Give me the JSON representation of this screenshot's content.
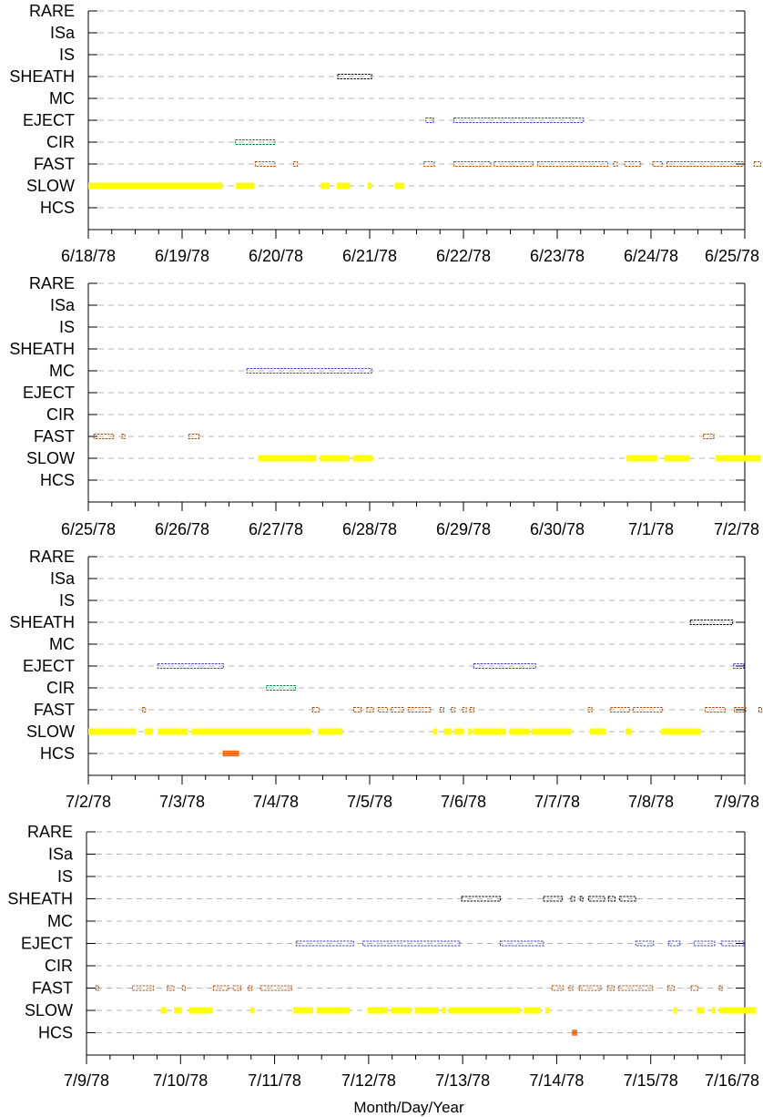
{
  "x_axis_title": "Month/Day/Year",
  "categories": [
    "RARE",
    "ISa",
    "IS",
    "SHEATH",
    "MC",
    "EJECT",
    "CIR",
    "FAST",
    "SLOW",
    "HCS"
  ],
  "colors": {
    "SHEATH": "#000000",
    "MC": "#4040c0",
    "EJECT": "#4040c0",
    "CIR": "#008040",
    "FAST": "#b05010",
    "SLOW": "#ffff00",
    "HCS": "#ff6000",
    "grid": "#b4b4b4",
    "axis": "#000000"
  },
  "chart_data": [
    {
      "type": "scatter",
      "panel": 1,
      "y_categories": [
        "RARE",
        "ISa",
        "IS",
        "SHEATH",
        "MC",
        "EJECT",
        "CIR",
        "FAST",
        "SLOW",
        "HCS"
      ],
      "x_range_days": [
        "6/18/78",
        "6/25/78"
      ],
      "tick_labels": [
        "6/18/78",
        "6/19/78",
        "6/20/78",
        "6/21/78",
        "6/22/78",
        "6/23/78",
        "6/24/78",
        "6/25/78"
      ],
      "grid": true,
      "intervals": [
        {
          "category": "SHEATH",
          "start": 2.66,
          "end": 3.02
        },
        {
          "category": "EJECT",
          "start": 3.6,
          "end": 3.68
        },
        {
          "category": "EJECT",
          "start": 3.9,
          "end": 5.28
        },
        {
          "category": "CIR",
          "start": 1.57,
          "end": 1.99
        },
        {
          "category": "FAST",
          "start": 1.78,
          "end": 1.99
        },
        {
          "category": "FAST",
          "start": 2.19,
          "end": 2.23
        },
        {
          "category": "FAST",
          "start": 3.58,
          "end": 3.69
        },
        {
          "category": "FAST",
          "start": 3.9,
          "end": 4.29
        },
        {
          "category": "FAST",
          "start": 4.33,
          "end": 4.74
        },
        {
          "category": "FAST",
          "start": 4.79,
          "end": 5.54
        },
        {
          "category": "FAST",
          "start": 5.6,
          "end": 5.64
        },
        {
          "category": "FAST",
          "start": 5.72,
          "end": 5.89
        },
        {
          "category": "FAST",
          "start": 6.02,
          "end": 6.12
        },
        {
          "category": "FAST",
          "start": 6.17,
          "end": 6.98
        },
        {
          "category": "FAST",
          "start": 7.1,
          "end": 7.17
        },
        {
          "category": "SLOW",
          "start": 0.0,
          "end": 1.43
        },
        {
          "category": "SLOW",
          "start": 1.57,
          "end": 1.77
        },
        {
          "category": "SLOW",
          "start": 2.48,
          "end": 2.57
        },
        {
          "category": "SLOW",
          "start": 2.65,
          "end": 2.79
        },
        {
          "category": "SLOW",
          "start": 2.98,
          "end": 3.02
        },
        {
          "category": "SLOW",
          "start": 3.27,
          "end": 3.37
        }
      ]
    },
    {
      "type": "scatter",
      "panel": 2,
      "y_categories": [
        "RARE",
        "ISa",
        "IS",
        "SHEATH",
        "MC",
        "EJECT",
        "CIR",
        "FAST",
        "SLOW",
        "HCS"
      ],
      "x_range_days": [
        "6/25/78",
        "7/2/78"
      ],
      "tick_labels": [
        "6/25/78",
        "6/26/78",
        "6/27/78",
        "6/28/78",
        "6/29/78",
        "6/30/78",
        "7/1/78",
        "7/2/78"
      ],
      "grid": true,
      "intervals": [
        {
          "category": "MC",
          "start": 1.69,
          "end": 3.02
        },
        {
          "category": "FAST",
          "start": 0.06,
          "end": 0.27
        },
        {
          "category": "FAST",
          "start": 0.36,
          "end": 0.39
        },
        {
          "category": "FAST",
          "start": 1.07,
          "end": 1.18
        },
        {
          "category": "FAST",
          "start": 6.56,
          "end": 6.67
        },
        {
          "category": "SLOW",
          "start": 1.81,
          "end": 2.43
        },
        {
          "category": "SLOW",
          "start": 2.47,
          "end": 2.78
        },
        {
          "category": "SLOW",
          "start": 2.82,
          "end": 3.03
        },
        {
          "category": "SLOW",
          "start": 5.74,
          "end": 6.07
        },
        {
          "category": "SLOW",
          "start": 6.14,
          "end": 6.41
        },
        {
          "category": "SLOW",
          "start": 6.69,
          "end": 7.17
        }
      ]
    },
    {
      "type": "scatter",
      "panel": 3,
      "y_categories": [
        "RARE",
        "ISa",
        "IS",
        "SHEATH",
        "MC",
        "EJECT",
        "CIR",
        "FAST",
        "SLOW",
        "HCS"
      ],
      "x_range_days": [
        "7/2/78",
        "7/9/78"
      ],
      "tick_labels": [
        "7/2/78",
        "7/3/78",
        "7/4/78",
        "7/5/78",
        "7/6/78",
        "7/7/78",
        "7/8/78",
        "7/9/78"
      ],
      "grid": true,
      "intervals": [
        {
          "category": "SHEATH",
          "start": 6.42,
          "end": 6.87
        },
        {
          "category": "EJECT",
          "start": 0.74,
          "end": 1.44
        },
        {
          "category": "EJECT",
          "start": 4.11,
          "end": 4.77
        },
        {
          "category": "EJECT",
          "start": 6.88,
          "end": 6.99
        },
        {
          "category": "CIR",
          "start": 1.9,
          "end": 2.21
        },
        {
          "category": "FAST",
          "start": 0.58,
          "end": 0.61
        },
        {
          "category": "FAST",
          "start": 2.39,
          "end": 2.46
        },
        {
          "category": "FAST",
          "start": 2.83,
          "end": 2.91
        },
        {
          "category": "FAST",
          "start": 2.97,
          "end": 3.04
        },
        {
          "category": "FAST",
          "start": 3.09,
          "end": 3.19
        },
        {
          "category": "FAST",
          "start": 3.23,
          "end": 3.36
        },
        {
          "category": "FAST",
          "start": 3.41,
          "end": 3.65
        },
        {
          "category": "FAST",
          "start": 3.75,
          "end": 3.79
        },
        {
          "category": "FAST",
          "start": 3.87,
          "end": 3.91
        },
        {
          "category": "FAST",
          "start": 3.99,
          "end": 4.03
        },
        {
          "category": "FAST",
          "start": 4.07,
          "end": 4.11
        },
        {
          "category": "FAST",
          "start": 5.33,
          "end": 5.37
        },
        {
          "category": "FAST",
          "start": 5.57,
          "end": 5.77
        },
        {
          "category": "FAST",
          "start": 5.81,
          "end": 6.12
        },
        {
          "category": "FAST",
          "start": 6.58,
          "end": 6.79
        },
        {
          "category": "FAST",
          "start": 6.89,
          "end": 7.01
        },
        {
          "category": "FAST",
          "start": 7.15,
          "end": 7.18
        },
        {
          "category": "SLOW",
          "start": 0.0,
          "end": 0.51
        },
        {
          "category": "SLOW",
          "start": 0.6,
          "end": 0.68
        },
        {
          "category": "SLOW",
          "start": 0.74,
          "end": 1.06
        },
        {
          "category": "SLOW",
          "start": 1.1,
          "end": 2.37
        },
        {
          "category": "SLOW",
          "start": 2.45,
          "end": 2.71
        },
        {
          "category": "SLOW",
          "start": 3.68,
          "end": 3.72
        },
        {
          "category": "SLOW",
          "start": 3.79,
          "end": 3.87
        },
        {
          "category": "SLOW",
          "start": 3.9,
          "end": 4.0
        },
        {
          "category": "SLOW",
          "start": 4.05,
          "end": 4.09
        },
        {
          "category": "SLOW",
          "start": 4.11,
          "end": 4.45
        },
        {
          "category": "SLOW",
          "start": 4.49,
          "end": 4.7
        },
        {
          "category": "SLOW",
          "start": 4.73,
          "end": 5.15
        },
        {
          "category": "SLOW",
          "start": 5.35,
          "end": 5.52
        },
        {
          "category": "SLOW",
          "start": 5.73,
          "end": 5.79
        },
        {
          "category": "SLOW",
          "start": 6.11,
          "end": 6.53
        },
        {
          "category": "HCS",
          "start": 1.44,
          "end": 1.6
        }
      ]
    },
    {
      "type": "scatter",
      "panel": 4,
      "y_categories": [
        "RARE",
        "ISa",
        "IS",
        "SHEATH",
        "MC",
        "EJECT",
        "CIR",
        "FAST",
        "SLOW",
        "HCS"
      ],
      "x_range_days": [
        "7/9/78",
        "7/16/78"
      ],
      "tick_labels": [
        "7/9/78",
        "7/10/78",
        "7/11/78",
        "7/12/78",
        "7/13/78",
        "7/14/78",
        "7/15/78",
        "7/16/78"
      ],
      "grid": true,
      "intervals": [
        {
          "category": "SHEATH",
          "start": 3.99,
          "end": 4.4
        },
        {
          "category": "SHEATH",
          "start": 4.86,
          "end": 5.06
        },
        {
          "category": "SHEATH",
          "start": 5.15,
          "end": 5.19
        },
        {
          "category": "SHEATH",
          "start": 5.25,
          "end": 5.25
        },
        {
          "category": "SHEATH",
          "start": 5.34,
          "end": 5.51
        },
        {
          "category": "SHEATH",
          "start": 5.55,
          "end": 5.62
        },
        {
          "category": "SHEATH",
          "start": 5.67,
          "end": 5.84
        },
        {
          "category": "EJECT",
          "start": 2.23,
          "end": 2.84
        },
        {
          "category": "EJECT",
          "start": 2.94,
          "end": 3.97
        },
        {
          "category": "EJECT",
          "start": 4.4,
          "end": 4.86
        },
        {
          "category": "EJECT",
          "start": 5.84,
          "end": 6.03
        },
        {
          "category": "EJECT",
          "start": 6.19,
          "end": 6.31
        },
        {
          "category": "EJECT",
          "start": 6.46,
          "end": 6.68
        },
        {
          "category": "EJECT",
          "start": 6.75,
          "end": 6.99
        },
        {
          "category": "FAST",
          "start": 0.1,
          "end": 0.13
        },
        {
          "category": "FAST",
          "start": 0.49,
          "end": 0.71
        },
        {
          "category": "FAST",
          "start": 0.86,
          "end": 0.93
        },
        {
          "category": "FAST",
          "start": 1.02,
          "end": 1.05
        },
        {
          "category": "FAST",
          "start": 1.35,
          "end": 1.51
        },
        {
          "category": "FAST",
          "start": 1.56,
          "end": 1.64
        },
        {
          "category": "FAST",
          "start": 1.72,
          "end": 1.76
        },
        {
          "category": "FAST",
          "start": 1.85,
          "end": 2.18
        },
        {
          "category": "FAST",
          "start": 4.95,
          "end": 5.07
        },
        {
          "category": "FAST",
          "start": 5.13,
          "end": 5.17
        },
        {
          "category": "FAST",
          "start": 5.24,
          "end": 5.47
        },
        {
          "category": "FAST",
          "start": 5.54,
          "end": 5.61
        },
        {
          "category": "FAST",
          "start": 5.66,
          "end": 6.02
        },
        {
          "category": "FAST",
          "start": 6.18,
          "end": 6.25
        },
        {
          "category": "FAST",
          "start": 6.43,
          "end": 6.5
        },
        {
          "category": "FAST",
          "start": 6.73,
          "end": 6.76
        },
        {
          "category": "SLOW",
          "start": 0.79,
          "end": 0.85
        },
        {
          "category": "SLOW",
          "start": 0.93,
          "end": 1.01
        },
        {
          "category": "SLOW",
          "start": 1.09,
          "end": 1.34
        },
        {
          "category": "SLOW",
          "start": 1.74,
          "end": 1.78
        },
        {
          "category": "SLOW",
          "start": 2.2,
          "end": 2.41
        },
        {
          "category": "SLOW",
          "start": 2.45,
          "end": 2.8
        },
        {
          "category": "SLOW",
          "start": 2.99,
          "end": 3.2
        },
        {
          "category": "SLOW",
          "start": 3.24,
          "end": 3.45
        },
        {
          "category": "SLOW",
          "start": 3.49,
          "end": 3.74
        },
        {
          "category": "SLOW",
          "start": 3.78,
          "end": 3.82
        },
        {
          "category": "SLOW",
          "start": 3.85,
          "end": 4.61
        },
        {
          "category": "SLOW",
          "start": 4.65,
          "end": 4.83
        },
        {
          "category": "SLOW",
          "start": 4.88,
          "end": 4.92
        },
        {
          "category": "SLOW",
          "start": 6.24,
          "end": 6.28
        },
        {
          "category": "SLOW",
          "start": 6.49,
          "end": 6.57
        },
        {
          "category": "SLOW",
          "start": 6.65,
          "end": 6.69
        },
        {
          "category": "SLOW",
          "start": 6.73,
          "end": 7.12
        },
        {
          "category": "HCS",
          "start": 5.17,
          "end": 5.21
        }
      ]
    }
  ]
}
